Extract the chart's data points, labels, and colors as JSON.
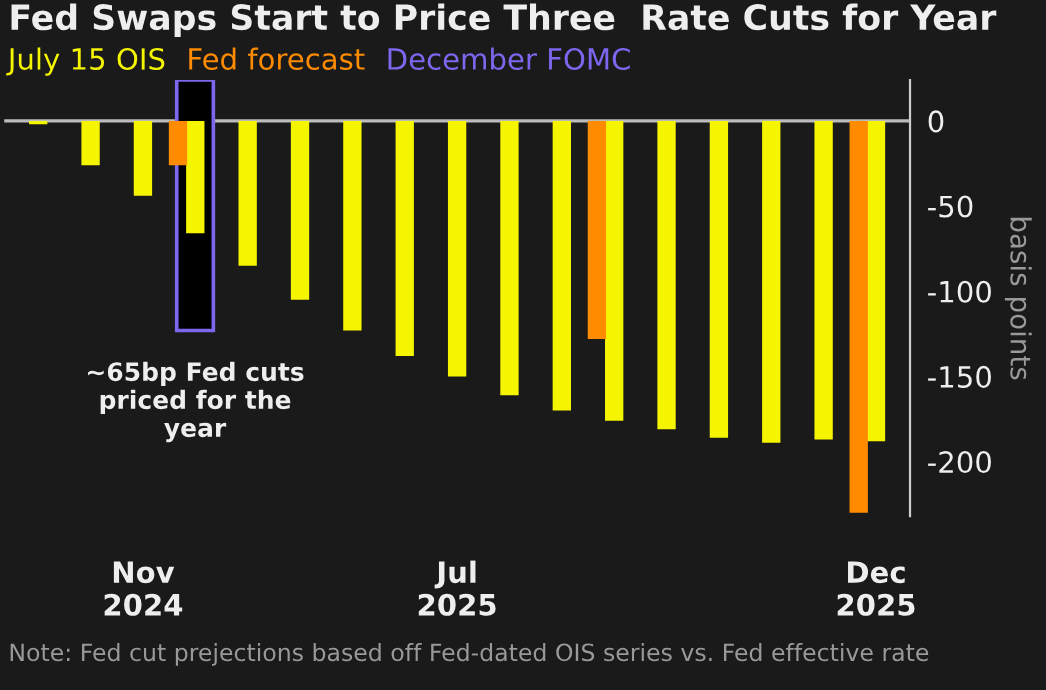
{
  "chart_data": {
    "type": "bar",
    "title": "Fed Swaps Start to Price Three  Rate Cuts for Year",
    "categories": [
      null,
      null,
      "Nov\n2024",
      null,
      null,
      null,
      null,
      null,
      "Jul\n2025",
      null,
      null,
      null,
      null,
      null,
      null,
      null,
      "Dec\n2025"
    ],
    "series": [
      {
        "name": "July 15 OIS",
        "color": "#f5f500",
        "values": [
          -2,
          -26,
          -44,
          -66,
          -85,
          -105,
          -123,
          -138,
          -150,
          -161,
          -170,
          -176,
          -181,
          -186,
          -189,
          -187,
          -188
        ]
      },
      {
        "name": "Fed forecast",
        "color": "#ff8c00",
        "values": [
          null,
          null,
          null,
          -26,
          null,
          null,
          null,
          null,
          null,
          null,
          null,
          -128,
          null,
          null,
          null,
          null,
          -230
        ]
      }
    ],
    "ylabel": "basis points",
    "ylim": [
      -232,
      24
    ],
    "yticks": [
      0,
      -50,
      -100,
      -150,
      -200
    ],
    "ref_lines": [
      {
        "axis": "y",
        "value": 0,
        "color": "#bbbbbb"
      }
    ],
    "annotations": [
      "~65bp Fed cuts\npriced for the\nyear",
      "Note: Fed cut prejections based off Fed-dated OIS series vs. Fed effective rate",
      "December FOMC"
    ],
    "legend": "top left",
    "grid": false
  }
}
